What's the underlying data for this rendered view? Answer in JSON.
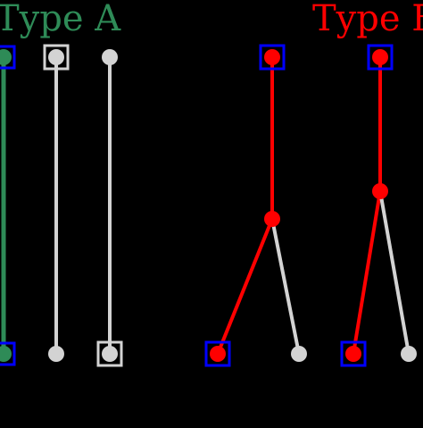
{
  "labels": {
    "type_a": "Type A",
    "type_b": "Type B"
  },
  "colors": {
    "background": "#000000",
    "type_a": "#2e8b57",
    "type_b": "#ff0000",
    "neutral": "#d3d3d3",
    "marker_box": "#0000ff"
  }
}
